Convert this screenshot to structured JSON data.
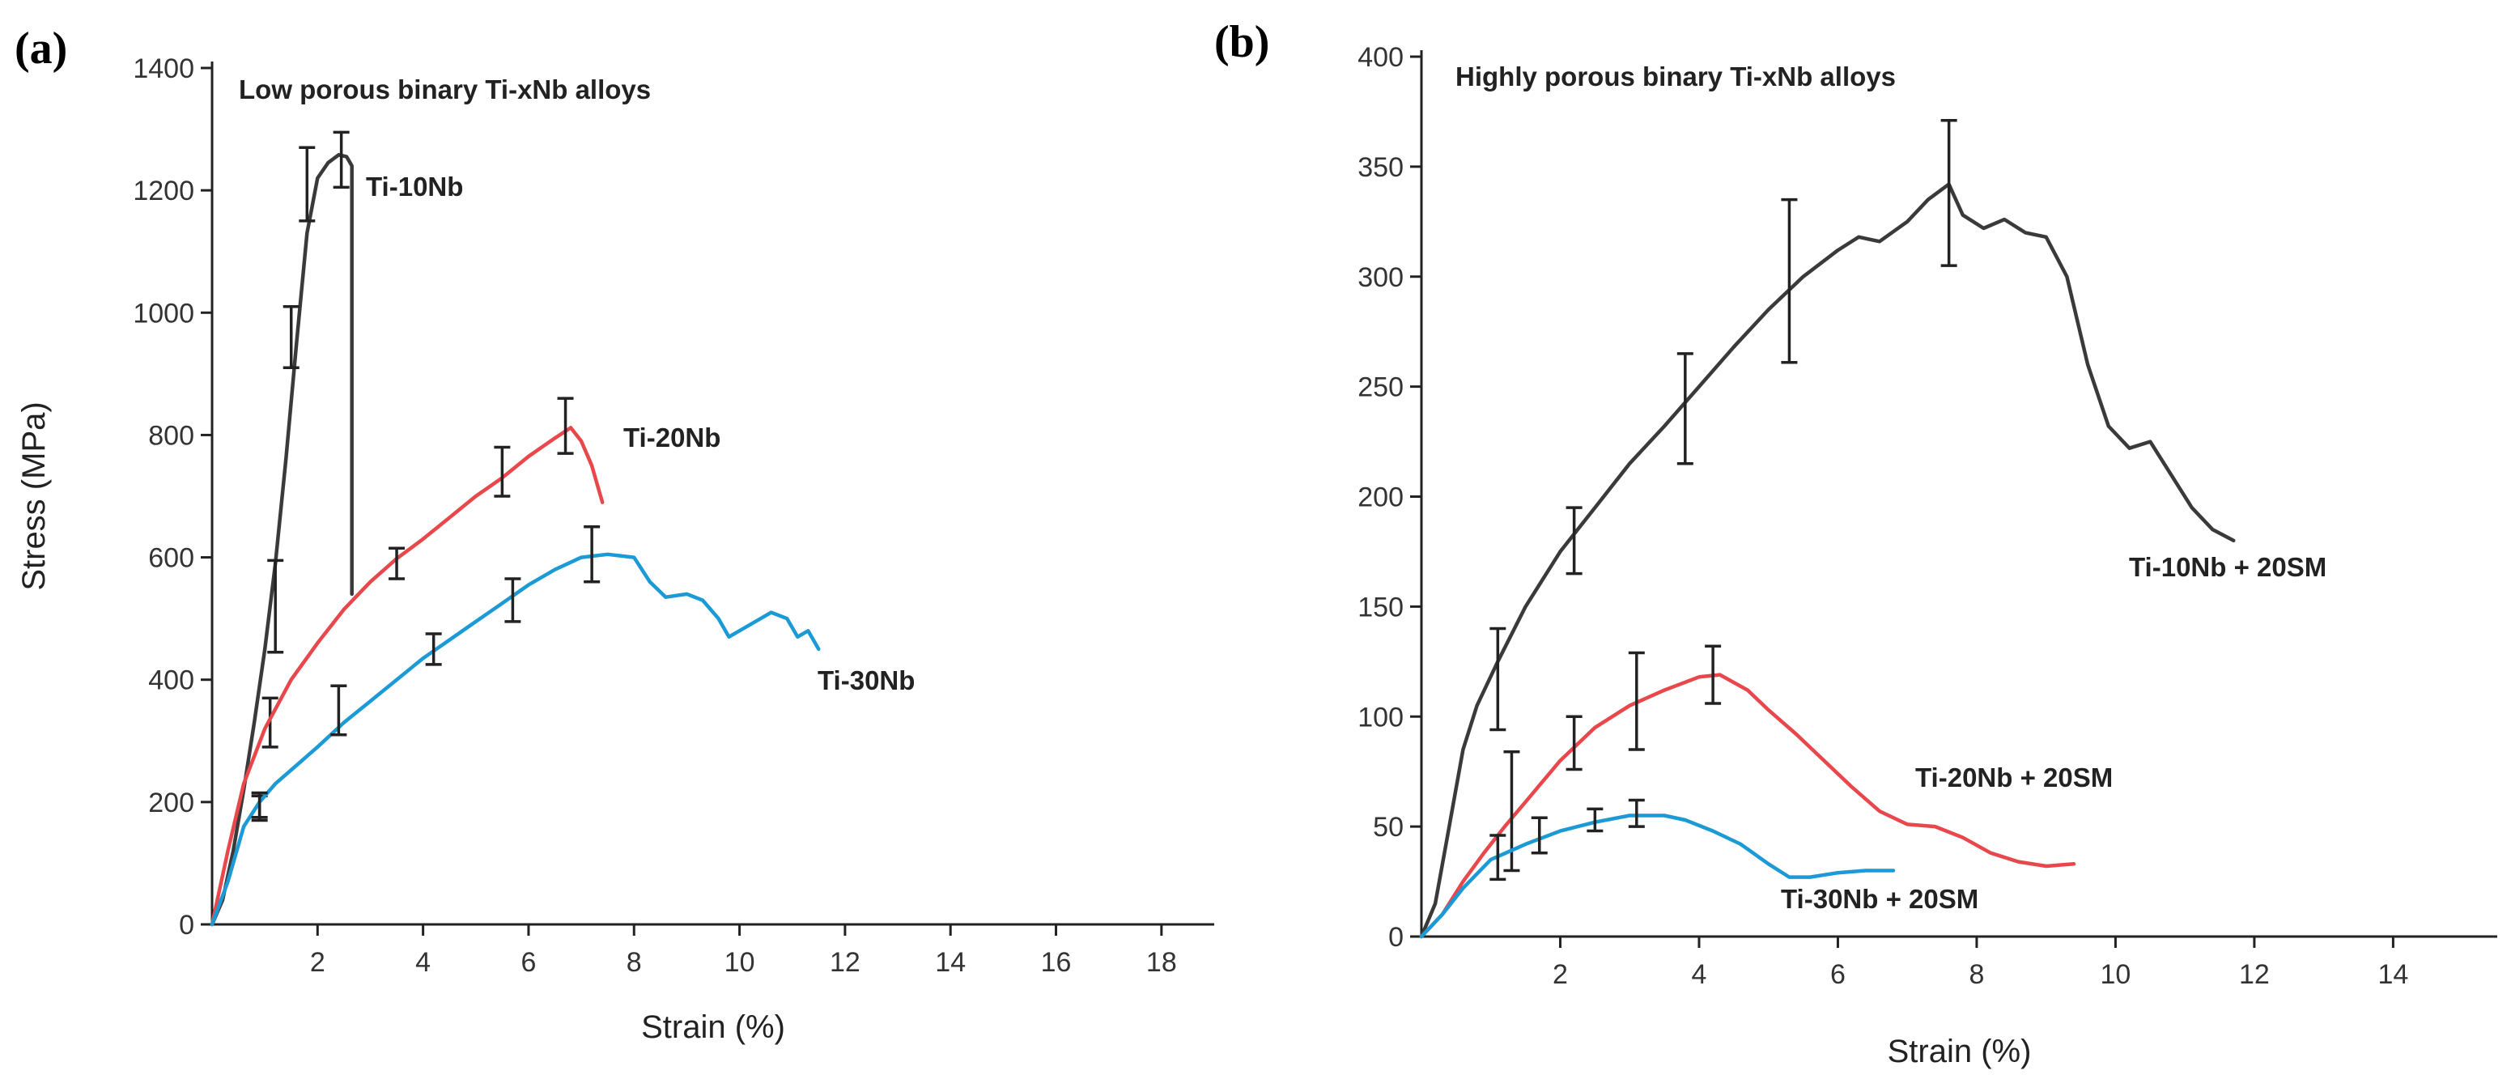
{
  "chart_data": [
    {
      "panel_label": "(a)",
      "type": "line",
      "title": "Low porous binary Ti-xNb alloys",
      "xlabel": "Strain (%)",
      "ylabel": "Stress (MPa)",
      "xlim": [
        0,
        19
      ],
      "ylim": [
        0,
        1400
      ],
      "xticks": [
        2,
        4,
        6,
        8,
        10,
        12,
        14,
        16,
        18
      ],
      "yticks": [
        0,
        200,
        400,
        600,
        800,
        1000,
        1200,
        1400
      ],
      "series": [
        {
          "name": "Ti-10Nb",
          "color": "#3a3a3a",
          "x": [
            0,
            0.2,
            0.4,
            0.6,
            0.8,
            1.0,
            1.2,
            1.4,
            1.6,
            1.8,
            2.0,
            2.2,
            2.4,
            2.55,
            2.65,
            2.65
          ],
          "y": [
            0,
            40,
            120,
            220,
            330,
            450,
            590,
            760,
            950,
            1130,
            1220,
            1245,
            1258,
            1255,
            1240,
            540
          ],
          "error_bars": [
            [
              0.9,
              190,
              20
            ],
            [
              1.1,
              330,
              40
            ],
            [
              1.2,
              520,
              75
            ],
            [
              1.5,
              960,
              50
            ],
            [
              1.8,
              1210,
              60
            ],
            [
              2.45,
              1250,
              45
            ]
          ]
        },
        {
          "name": "Ti-20Nb",
          "color": "#e8474b",
          "x": [
            0,
            0.3,
            0.6,
            1.0,
            1.5,
            2.0,
            2.5,
            3.0,
            3.5,
            4.0,
            4.5,
            5.0,
            5.5,
            6.0,
            6.5,
            6.8,
            7.0,
            7.2,
            7.4
          ],
          "y": [
            0,
            120,
            230,
            320,
            400,
            460,
            515,
            560,
            598,
            630,
            665,
            700,
            730,
            765,
            795,
            812,
            790,
            750,
            690
          ],
          "error_bars": [
            [
              3.5,
              590,
              25
            ],
            [
              5.5,
              740,
              40
            ],
            [
              6.7,
              815,
              45
            ]
          ]
        },
        {
          "name": "Ti-30Nb",
          "color": "#1b9ad6",
          "x": [
            0,
            0.3,
            0.6,
            0.9,
            1.2,
            1.6,
            2.0,
            2.5,
            3.0,
            3.5,
            4.0,
            4.5,
            5.0,
            5.5,
            6.0,
            6.5,
            7.0,
            7.5,
            8.0,
            8.3,
            8.6,
            9.0,
            9.3,
            9.6,
            9.8,
            10.2,
            10.6,
            10.9,
            11.1,
            11.3,
            11.5
          ],
          "y": [
            0,
            70,
            160,
            200,
            230,
            260,
            290,
            330,
            365,
            400,
            435,
            465,
            495,
            525,
            555,
            580,
            600,
            605,
            600,
            560,
            535,
            540,
            530,
            500,
            470,
            490,
            510,
            500,
            470,
            480,
            450
          ],
          "error_bars": [
            [
              0.9,
              195,
              20
            ],
            [
              2.4,
              350,
              40
            ],
            [
              4.2,
              450,
              25
            ],
            [
              5.7,
              530,
              35
            ],
            [
              7.2,
              605,
              45
            ]
          ]
        }
      ]
    },
    {
      "panel_label": "(b)",
      "type": "line",
      "title": "Highly porous binary Ti-xNb alloys",
      "xlabel": "Strain (%)",
      "ylabel": "",
      "xlim": [
        0,
        15.5
      ],
      "ylim": [
        0,
        400
      ],
      "xticks": [
        2,
        4,
        6,
        8,
        10,
        12,
        14
      ],
      "yticks": [
        0,
        50,
        100,
        150,
        200,
        250,
        300,
        350,
        400
      ],
      "series": [
        {
          "name": "Ti-10Nb + 20SM",
          "color": "#3a3a3a",
          "x": [
            0,
            0.2,
            0.4,
            0.6,
            0.8,
            1.1,
            1.5,
            2.0,
            2.5,
            3.0,
            3.5,
            4.0,
            4.5,
            5.0,
            5.5,
            6.0,
            6.3,
            6.6,
            7.0,
            7.3,
            7.6,
            7.8,
            8.1,
            8.4,
            8.7,
            9.0,
            9.3,
            9.6,
            9.9,
            10.2,
            10.5,
            10.8,
            11.1,
            11.4,
            11.7
          ],
          "y": [
            0,
            15,
            50,
            85,
            105,
            125,
            150,
            175,
            195,
            215,
            232,
            250,
            268,
            285,
            300,
            312,
            318,
            316,
            325,
            335,
            342,
            328,
            322,
            326,
            320,
            318,
            300,
            260,
            232,
            222,
            225,
            210,
            195,
            185,
            180
          ],
          "error_bars": [
            [
              1.1,
              117,
              23
            ],
            [
              2.2,
              180,
              15
            ],
            [
              3.8,
              240,
              25
            ],
            [
              5.3,
              298,
              37
            ],
            [
              7.6,
              338,
              33
            ]
          ]
        },
        {
          "name": "Ti-20Nb + 20SM",
          "color": "#e8474b",
          "x": [
            0,
            0.3,
            0.6,
            0.9,
            1.2,
            1.6,
            2.0,
            2.5,
            3.0,
            3.5,
            4.0,
            4.3,
            4.7,
            5.0,
            5.4,
            5.8,
            6.2,
            6.6,
            7.0,
            7.4,
            7.8,
            8.2,
            8.6,
            9.0,
            9.4
          ],
          "y": [
            0,
            10,
            25,
            38,
            50,
            65,
            80,
            95,
            105,
            112,
            118,
            119,
            112,
            103,
            92,
            80,
            68,
            57,
            51,
            50,
            45,
            38,
            34,
            32,
            33
          ],
          "error_bars": [
            [
              1.3,
              57,
              27
            ],
            [
              2.2,
              88,
              12
            ],
            [
              3.1,
              107,
              22
            ],
            [
              4.2,
              119,
              13
            ]
          ]
        },
        {
          "name": "Ti-30Nb + 20SM",
          "color": "#1b9ad6",
          "x": [
            0,
            0.3,
            0.6,
            1.0,
            1.5,
            2.0,
            2.5,
            3.0,
            3.5,
            3.8,
            4.2,
            4.6,
            5.0,
            5.3,
            5.6,
            6.0,
            6.4,
            6.8
          ],
          "y": [
            0,
            10,
            22,
            35,
            42,
            48,
            52,
            55,
            55,
            53,
            48,
            42,
            33,
            27,
            27,
            29,
            30,
            30
          ],
          "error_bars": [
            [
              1.1,
              36,
              10
            ],
            [
              1.7,
              46,
              8
            ],
            [
              2.5,
              53,
              5
            ],
            [
              3.1,
              56,
              6
            ]
          ]
        }
      ]
    }
  ]
}
